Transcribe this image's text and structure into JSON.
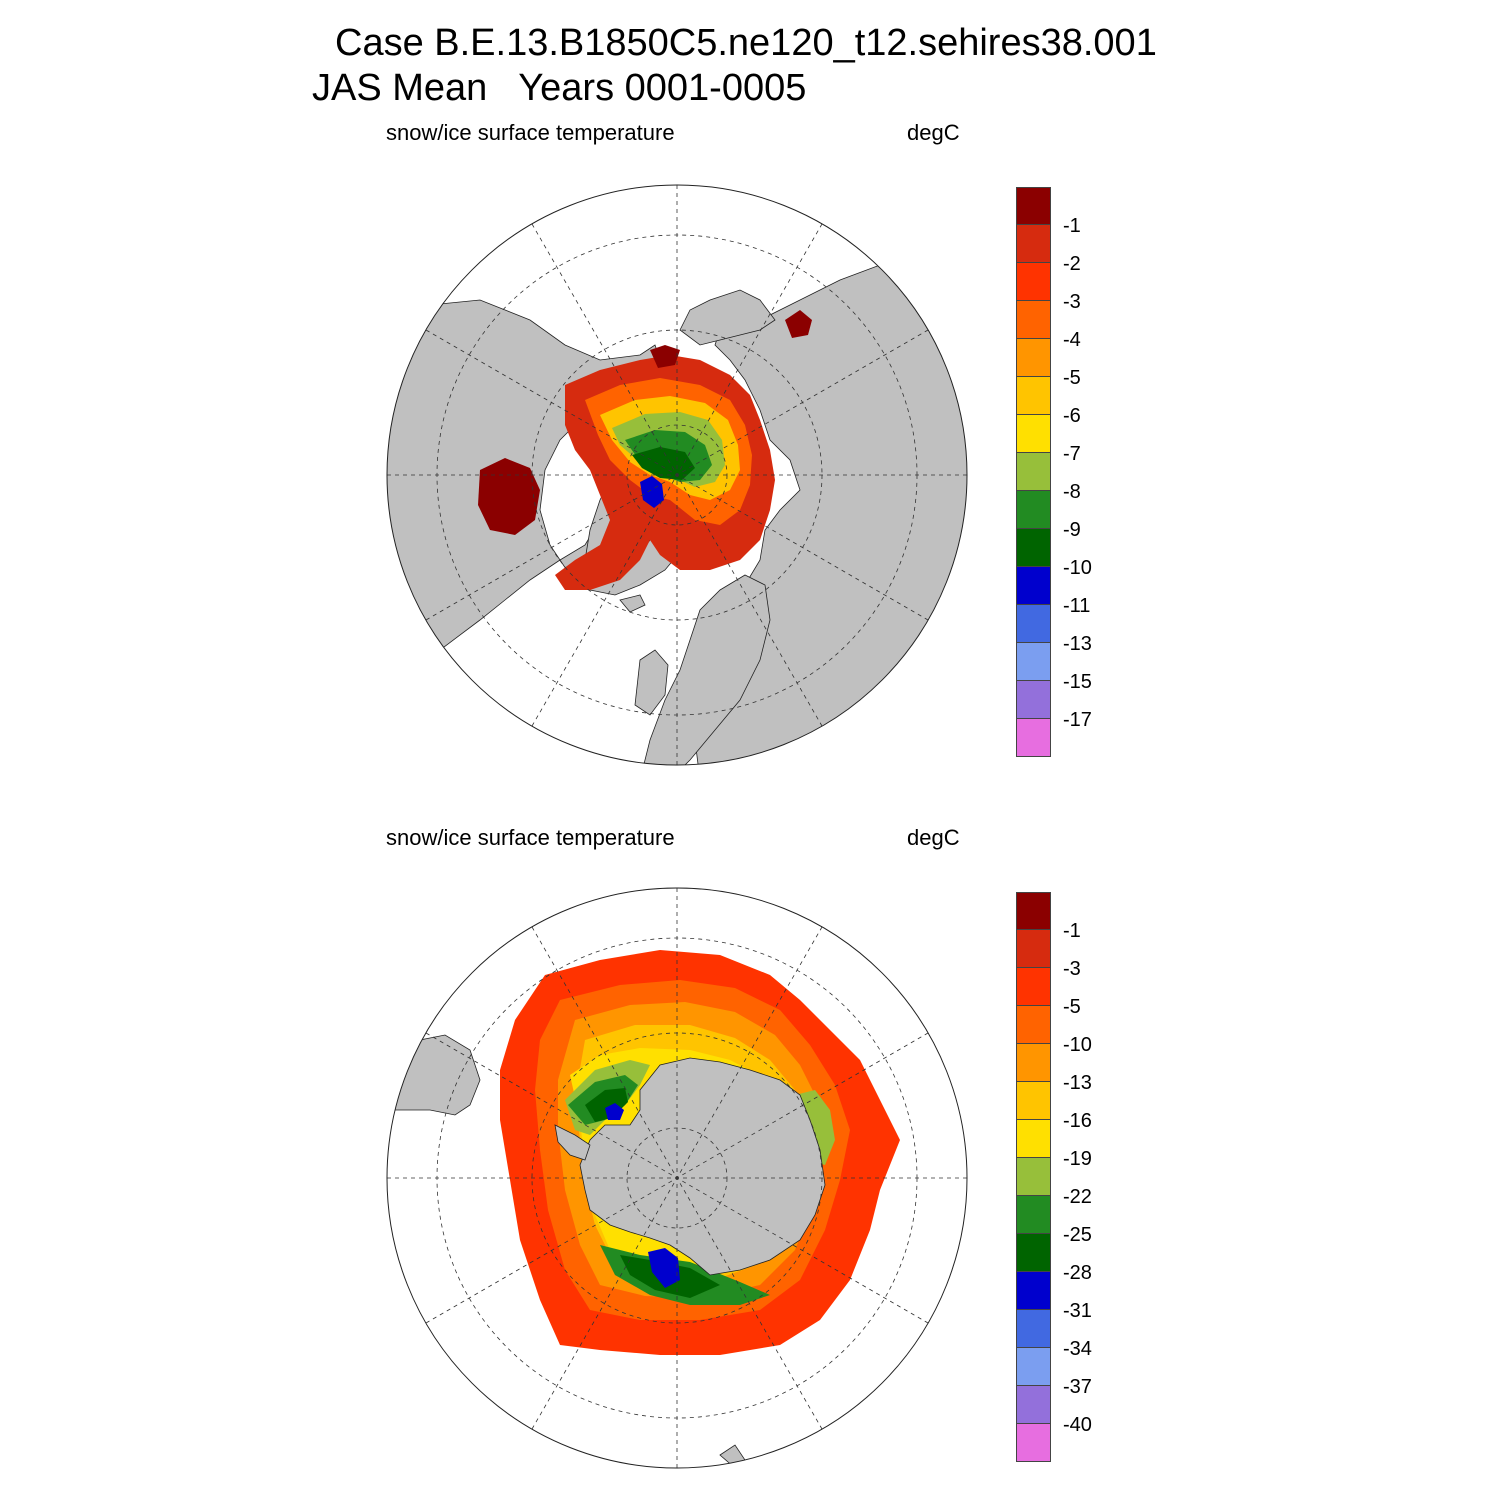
{
  "title": {
    "line1": "Case B.E.13.B1850C5.ne120_t12.sehires38.001",
    "line2": "JAS Mean   Years 0001-0005"
  },
  "panels": [
    {
      "variable": "snow/ice surface temperature",
      "units": "degC",
      "hemisphere": "north",
      "colorbar_labels": [
        "-1",
        "-2",
        "-3",
        "-4",
        "-5",
        "-6",
        "-7",
        "-8",
        "-9",
        "-10",
        "-11",
        "-13",
        "-15",
        "-17"
      ]
    },
    {
      "variable": "snow/ice surface temperature",
      "units": "degC",
      "hemisphere": "south",
      "colorbar_labels": [
        "-1",
        "-3",
        "-5",
        "-10",
        "-13",
        "-16",
        "-19",
        "-22",
        "-25",
        "-28",
        "-31",
        "-34",
        "-37",
        "-40"
      ]
    }
  ],
  "colors": {
    "land": "#c0c0c0",
    "ocean": "#ffffff",
    "colorbar": [
      "#8b0000",
      "#d62b0f",
      "#ff3300",
      "#ff6300",
      "#ff9500",
      "#ffc400",
      "#ffe000",
      "#97bf3a",
      "#228b22",
      "#006400",
      "#0000cd",
      "#4169e1",
      "#7b9ef0",
      "#9370db",
      "#e76ee0"
    ]
  }
}
